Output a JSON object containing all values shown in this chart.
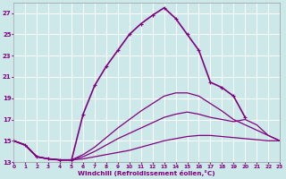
{
  "xlabel": "Windchill (Refroidissement éolien,°C)",
  "background_color": "#cce8e8",
  "grid_color": "#ffffff",
  "line_color": "#800080",
  "xlim": [
    0,
    23
  ],
  "ylim": [
    13,
    28
  ],
  "yticks": [
    13,
    15,
    17,
    19,
    21,
    23,
    25,
    27
  ],
  "xticks": [
    0,
    1,
    2,
    3,
    4,
    5,
    6,
    7,
    8,
    9,
    10,
    11,
    12,
    13,
    14,
    15,
    16,
    17,
    18,
    19,
    20,
    21,
    22,
    23
  ],
  "series": [
    {
      "x": [
        0,
        1,
        2,
        3,
        4,
        5,
        6,
        7,
        8,
        9,
        10,
        11,
        12,
        13,
        14,
        15,
        16,
        17,
        18,
        19,
        20,
        21,
        22,
        23
      ],
      "y": [
        15.0,
        14.6,
        13.5,
        13.3,
        13.2,
        13.2,
        13.3,
        13.5,
        13.7,
        13.9,
        14.1,
        14.4,
        14.7,
        15.0,
        15.2,
        15.4,
        15.5,
        15.5,
        15.4,
        15.3,
        15.2,
        15.1,
        15.0,
        15.0
      ],
      "marker": null,
      "linewidth": 0.9,
      "linestyle": "-"
    },
    {
      "x": [
        0,
        1,
        2,
        3,
        4,
        5,
        6,
        7,
        8,
        9,
        10,
        11,
        12,
        13,
        14,
        15,
        16,
        17,
        18,
        19,
        20,
        21,
        22,
        23
      ],
      "y": [
        15.0,
        14.6,
        13.5,
        13.3,
        13.2,
        13.2,
        13.5,
        14.0,
        14.6,
        15.2,
        15.7,
        16.2,
        16.7,
        17.2,
        17.5,
        17.7,
        17.5,
        17.2,
        17.0,
        16.8,
        17.0,
        16.5,
        15.5,
        15.0
      ],
      "marker": null,
      "linewidth": 0.9,
      "linestyle": "-"
    },
    {
      "x": [
        0,
        1,
        2,
        3,
        4,
        5,
        6,
        7,
        8,
        9,
        10,
        11,
        12,
        13,
        14,
        15,
        16,
        17,
        18,
        19,
        20,
        21,
        22,
        23
      ],
      "y": [
        15.0,
        14.6,
        13.5,
        13.3,
        13.2,
        13.2,
        13.7,
        14.4,
        15.3,
        16.2,
        17.0,
        17.8,
        18.5,
        19.2,
        19.5,
        19.5,
        19.2,
        18.5,
        17.8,
        17.0,
        16.5,
        16.0,
        15.5,
        15.0
      ],
      "marker": null,
      "linewidth": 0.9,
      "linestyle": "-"
    },
    {
      "x": [
        0,
        1,
        2,
        3,
        4,
        5,
        6,
        7,
        8,
        9,
        10,
        11,
        12,
        13,
        14,
        15,
        16,
        17,
        18,
        19,
        20
      ],
      "y": [
        15.0,
        14.6,
        13.5,
        13.3,
        13.2,
        13.2,
        17.5,
        20.2,
        22.0,
        23.5,
        25.0,
        26.0,
        26.8,
        27.5,
        26.5,
        25.0,
        23.5,
        20.5,
        20.0,
        19.2,
        17.2
      ],
      "marker": "+",
      "linewidth": 1.2,
      "linestyle": "-"
    }
  ]
}
